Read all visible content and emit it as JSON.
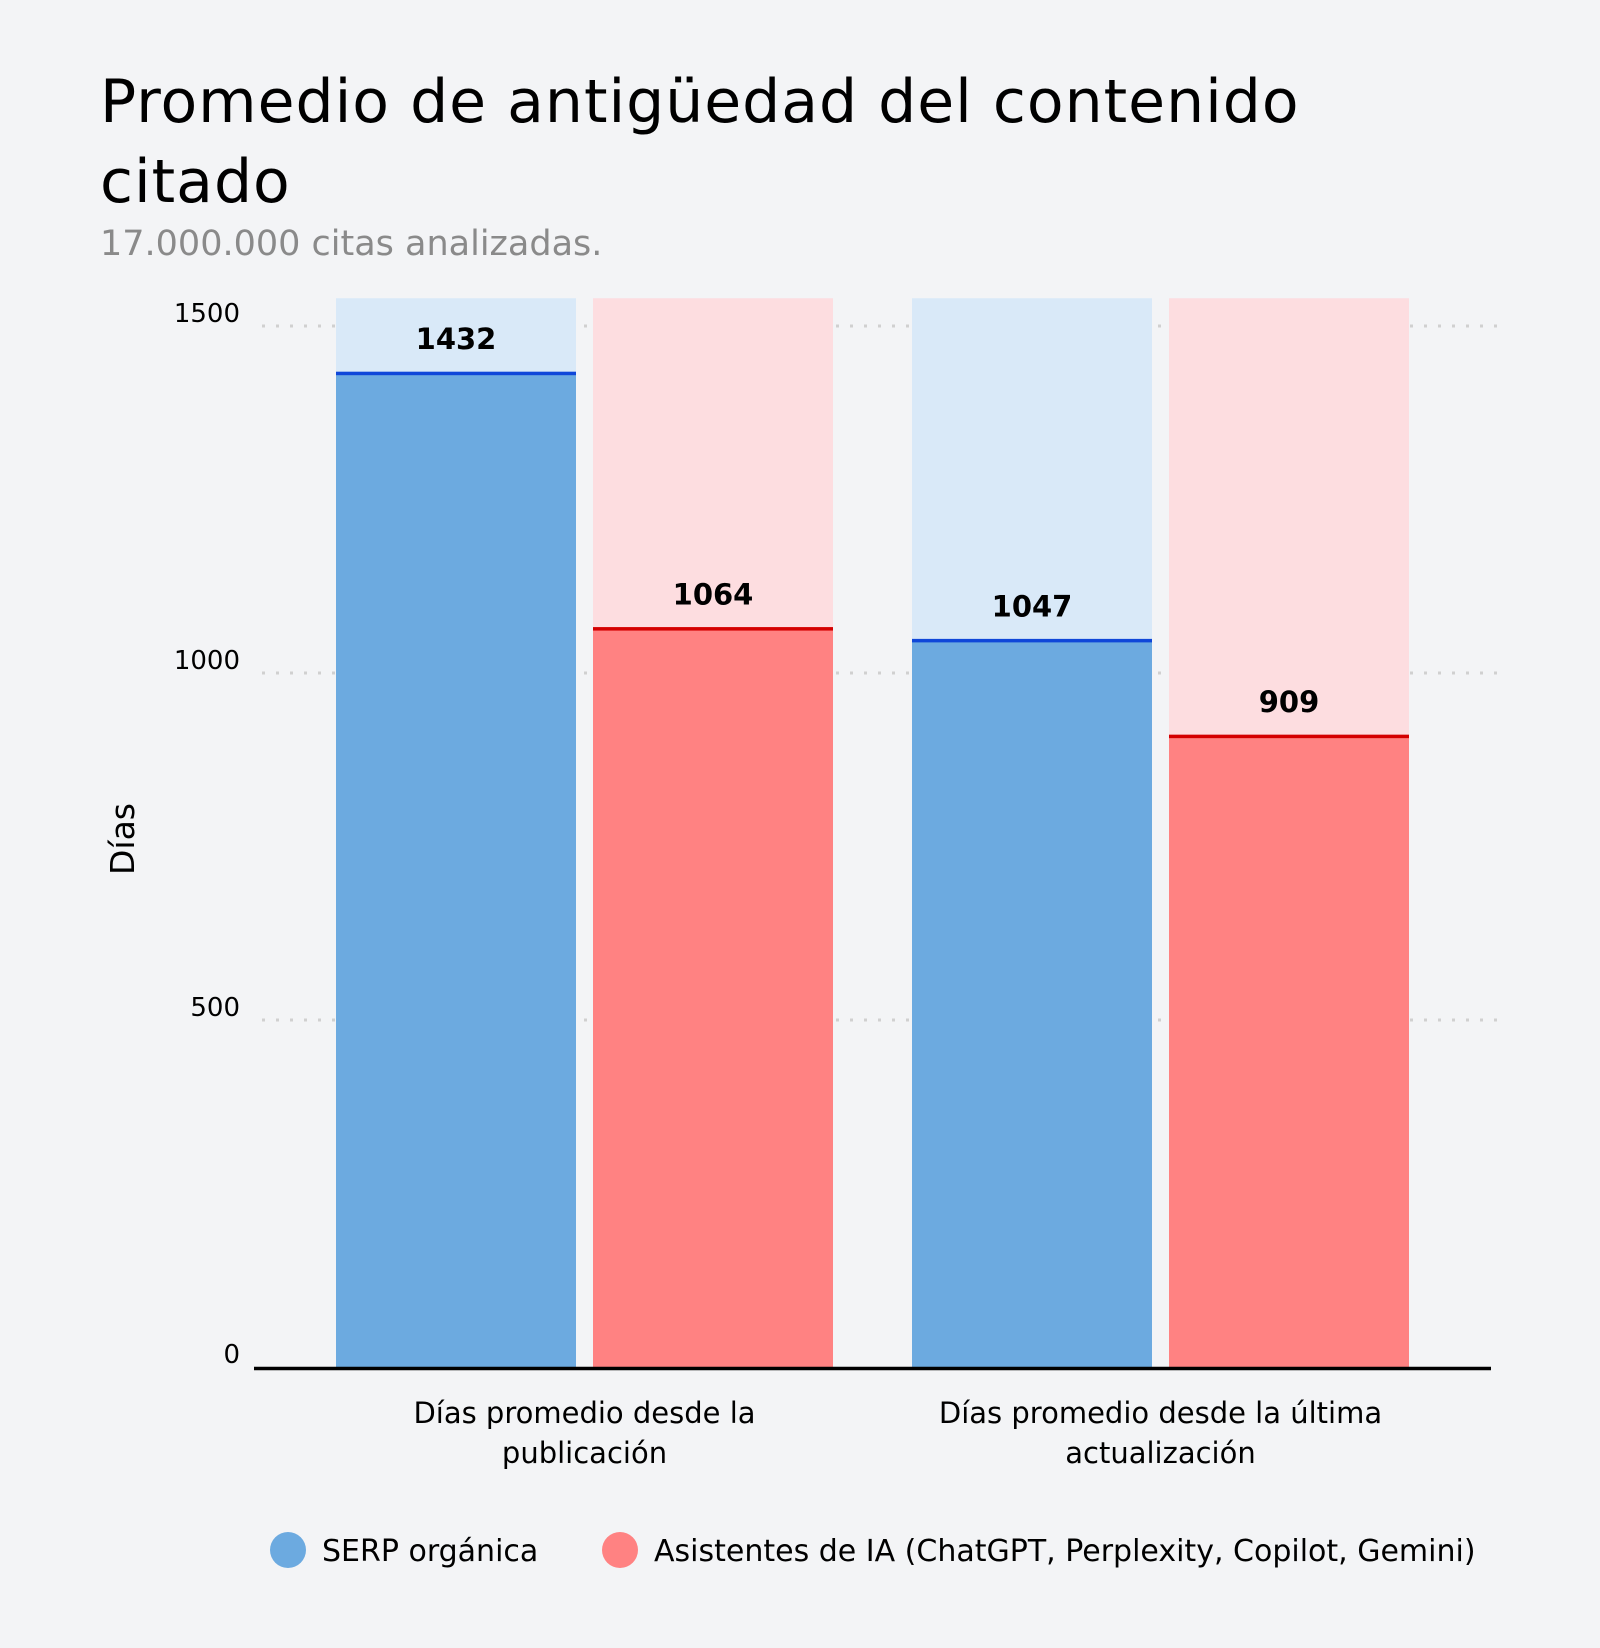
{
  "chart_data": {
    "type": "bar",
    "title": "Promedio de antigüedad del contenido citado",
    "subtitle": "17.000.000 citas analizadas.",
    "xlabel": "",
    "ylabel": "Días",
    "ylim": [
      0,
      1540
    ],
    "yticks": [
      0,
      500,
      1000,
      1500
    ],
    "grid": true,
    "legend_position": "bottom",
    "categories": [
      "Días promedio desde la publicación",
      "Días promedio desde la última actualización"
    ],
    "category_lines": [
      [
        "Días promedio desde la",
        "publicación"
      ],
      [
        "Días promedio desde la última",
        "actualización"
      ]
    ],
    "series": [
      {
        "name": "SERP orgánica",
        "values": [
          1432,
          1047
        ],
        "color": "#6caae0",
        "bg_color": "#d9e9f8",
        "line_color": "#0f47d9"
      },
      {
        "name": "Asistentes de IA (ChatGPT, Perplexity, Copilot, Gemini)",
        "values": [
          1064,
          909
        ],
        "color": "#ff8282",
        "bg_color": "#fddde0",
        "line_color": "#d40000"
      }
    ]
  }
}
